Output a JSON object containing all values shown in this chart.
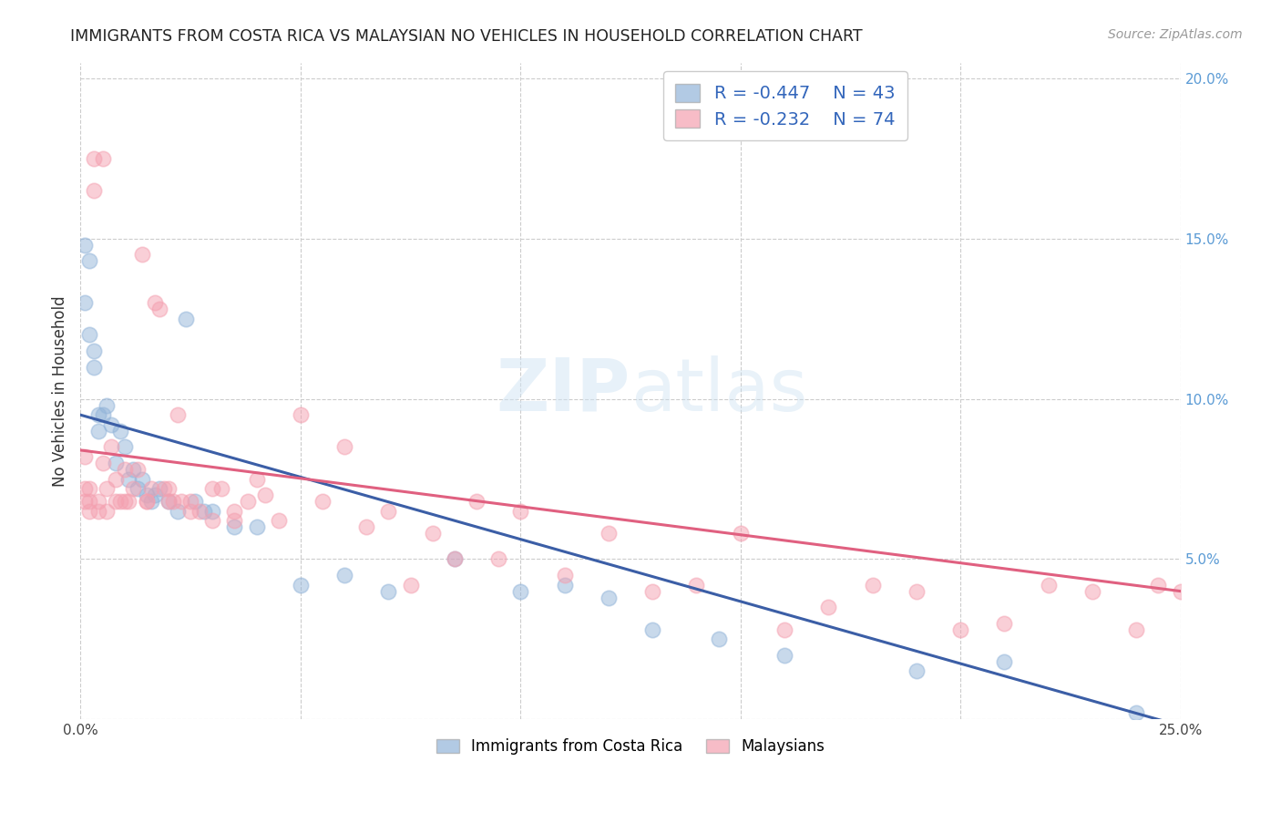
{
  "title": "IMMIGRANTS FROM COSTA RICA VS MALAYSIAN NO VEHICLES IN HOUSEHOLD CORRELATION CHART",
  "source": "Source: ZipAtlas.com",
  "ylabel": "No Vehicles in Household",
  "xmin": 0.0,
  "xmax": 0.25,
  "ymin": 0.0,
  "ymax": 0.205,
  "x_ticks": [
    0.0,
    0.05,
    0.1,
    0.15,
    0.2,
    0.25
  ],
  "y_ticks": [
    0.0,
    0.05,
    0.1,
    0.15,
    0.2
  ],
  "legend_r_blue": "-0.447",
  "legend_n_blue": "43",
  "legend_r_pink": "-0.232",
  "legend_n_pink": "74",
  "blue_color": "#92B4D9",
  "pink_color": "#F4A0B0",
  "blue_line_color": "#3B5EA6",
  "pink_line_color": "#E06080",
  "blue_line_x0": 0.0,
  "blue_line_y0": 0.095,
  "blue_line_x1": 0.25,
  "blue_line_y1": -0.002,
  "pink_line_x0": 0.0,
  "pink_line_y0": 0.084,
  "pink_line_x1": 0.25,
  "pink_line_y1": 0.04,
  "blue_x": [
    0.001,
    0.001,
    0.002,
    0.002,
    0.003,
    0.003,
    0.004,
    0.004,
    0.005,
    0.006,
    0.007,
    0.008,
    0.009,
    0.01,
    0.011,
    0.012,
    0.013,
    0.014,
    0.015,
    0.016,
    0.017,
    0.018,
    0.02,
    0.022,
    0.024,
    0.026,
    0.028,
    0.03,
    0.035,
    0.04,
    0.05,
    0.06,
    0.07,
    0.085,
    0.1,
    0.11,
    0.12,
    0.13,
    0.145,
    0.16,
    0.19,
    0.21,
    0.24
  ],
  "blue_y": [
    0.13,
    0.148,
    0.143,
    0.12,
    0.115,
    0.11,
    0.095,
    0.09,
    0.095,
    0.098,
    0.092,
    0.08,
    0.09,
    0.085,
    0.075,
    0.078,
    0.072,
    0.075,
    0.07,
    0.068,
    0.07,
    0.072,
    0.068,
    0.065,
    0.125,
    0.068,
    0.065,
    0.065,
    0.06,
    0.06,
    0.042,
    0.045,
    0.04,
    0.05,
    0.04,
    0.042,
    0.038,
    0.028,
    0.025,
    0.02,
    0.015,
    0.018,
    0.002
  ],
  "pink_x": [
    0.001,
    0.001,
    0.002,
    0.002,
    0.003,
    0.003,
    0.004,
    0.005,
    0.005,
    0.006,
    0.007,
    0.008,
    0.009,
    0.01,
    0.011,
    0.012,
    0.013,
    0.014,
    0.015,
    0.016,
    0.017,
    0.018,
    0.019,
    0.02,
    0.021,
    0.022,
    0.023,
    0.025,
    0.027,
    0.03,
    0.032,
    0.035,
    0.038,
    0.04,
    0.042,
    0.045,
    0.05,
    0.055,
    0.06,
    0.065,
    0.07,
    0.075,
    0.08,
    0.085,
    0.09,
    0.095,
    0.1,
    0.11,
    0.12,
    0.13,
    0.14,
    0.15,
    0.16,
    0.17,
    0.18,
    0.19,
    0.2,
    0.21,
    0.22,
    0.23,
    0.24,
    0.245,
    0.25,
    0.001,
    0.002,
    0.004,
    0.006,
    0.008,
    0.01,
    0.015,
    0.02,
    0.025,
    0.03,
    0.035
  ],
  "pink_y": [
    0.082,
    0.068,
    0.072,
    0.065,
    0.165,
    0.175,
    0.068,
    0.175,
    0.08,
    0.072,
    0.085,
    0.075,
    0.068,
    0.078,
    0.068,
    0.072,
    0.078,
    0.145,
    0.068,
    0.072,
    0.13,
    0.128,
    0.072,
    0.072,
    0.068,
    0.095,
    0.068,
    0.068,
    0.065,
    0.072,
    0.072,
    0.065,
    0.068,
    0.075,
    0.07,
    0.062,
    0.095,
    0.068,
    0.085,
    0.06,
    0.065,
    0.042,
    0.058,
    0.05,
    0.068,
    0.05,
    0.065,
    0.045,
    0.058,
    0.04,
    0.042,
    0.058,
    0.028,
    0.035,
    0.042,
    0.04,
    0.028,
    0.03,
    0.042,
    0.04,
    0.028,
    0.042,
    0.04,
    0.072,
    0.068,
    0.065,
    0.065,
    0.068,
    0.068,
    0.068,
    0.068,
    0.065,
    0.062,
    0.062
  ]
}
